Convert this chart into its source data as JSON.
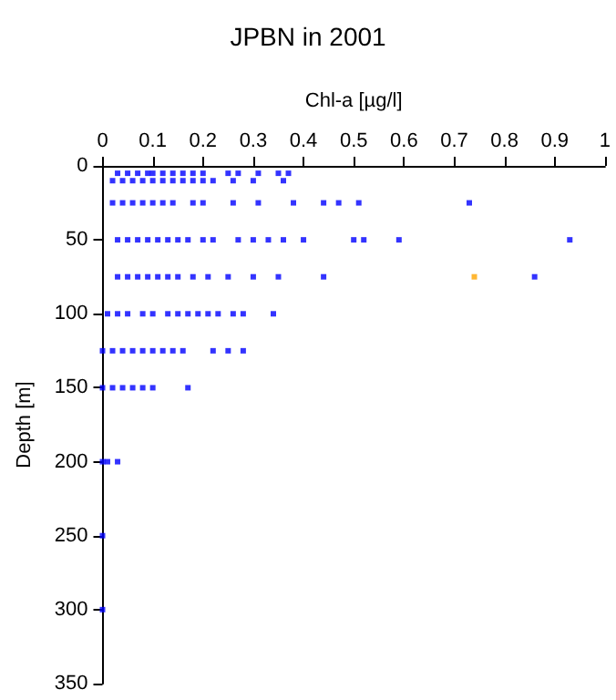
{
  "chart_data": {
    "type": "scatter",
    "title": "JPBN in 2001",
    "xlabel": "Chl-a [µg/l]",
    "ylabel": "Depth [m]",
    "xlim": [
      0,
      1
    ],
    "xticks": [
      0,
      0.1,
      0.2,
      0.3,
      0.4,
      0.5,
      0.6,
      0.7,
      0.8,
      0.9,
      1
    ],
    "ylim": [
      350,
      0
    ],
    "yticks": [
      0,
      50,
      100,
      150,
      200,
      250,
      300,
      350
    ],
    "grid": false,
    "marker": "square",
    "series": [
      {
        "color": "#0000ff",
        "x": [
          0.03,
          0.05,
          0.07,
          0.09,
          0.1,
          0.12,
          0.14,
          0.16,
          0.18,
          0.2,
          0.25,
          0.27,
          0.31,
          0.35,
          0.37,
          0.02,
          0.04,
          0.06,
          0.08,
          0.1,
          0.12,
          0.14,
          0.16,
          0.18,
          0.2,
          0.22,
          0.26,
          0.3,
          0.36,
          0.02,
          0.04,
          0.06,
          0.08,
          0.1,
          0.12,
          0.14,
          0.18,
          0.2,
          0.26,
          0.31,
          0.38,
          0.44,
          0.47,
          0.51,
          0.73,
          0.03,
          0.05,
          0.07,
          0.09,
          0.11,
          0.13,
          0.15,
          0.17,
          0.2,
          0.22,
          0.27,
          0.3,
          0.33,
          0.36,
          0.4,
          0.5,
          0.52,
          0.59,
          0.93,
          0.03,
          0.05,
          0.07,
          0.09,
          0.11,
          0.13,
          0.15,
          0.18,
          0.21,
          0.25,
          0.3,
          0.35,
          0.44,
          0.86,
          0.01,
          0.03,
          0.05,
          0.08,
          0.1,
          0.13,
          0.15,
          0.17,
          0.19,
          0.21,
          0.23,
          0.26,
          0.28,
          0.34,
          0.0,
          0.02,
          0.04,
          0.06,
          0.08,
          0.1,
          0.12,
          0.14,
          0.16,
          0.22,
          0.25,
          0.28,
          0.0,
          0.02,
          0.04,
          0.06,
          0.08,
          0.1,
          0.17,
          0.0,
          0.01,
          0.03,
          0.0,
          0.0
        ],
        "values": [
          5,
          5,
          5,
          5,
          5,
          5,
          5,
          5,
          5,
          5,
          5,
          5,
          5,
          5,
          5,
          10,
          10,
          10,
          10,
          10,
          10,
          10,
          10,
          10,
          10,
          10,
          10,
          10,
          10,
          25,
          25,
          25,
          25,
          25,
          25,
          25,
          25,
          25,
          25,
          25,
          25,
          25,
          25,
          25,
          25,
          50,
          50,
          50,
          50,
          50,
          50,
          50,
          50,
          50,
          50,
          50,
          50,
          50,
          50,
          50,
          50,
          50,
          50,
          50,
          75,
          75,
          75,
          75,
          75,
          75,
          75,
          75,
          75,
          75,
          75,
          75,
          75,
          75,
          100,
          100,
          100,
          100,
          100,
          100,
          100,
          100,
          100,
          100,
          100,
          100,
          100,
          100,
          125,
          125,
          125,
          125,
          125,
          125,
          125,
          125,
          125,
          125,
          125,
          125,
          150,
          150,
          150,
          150,
          150,
          150,
          150,
          200,
          200,
          200,
          250,
          300
        ]
      },
      {
        "color": "#ffa500",
        "x": [
          0.74
        ],
        "values": [
          75
        ]
      }
    ]
  }
}
